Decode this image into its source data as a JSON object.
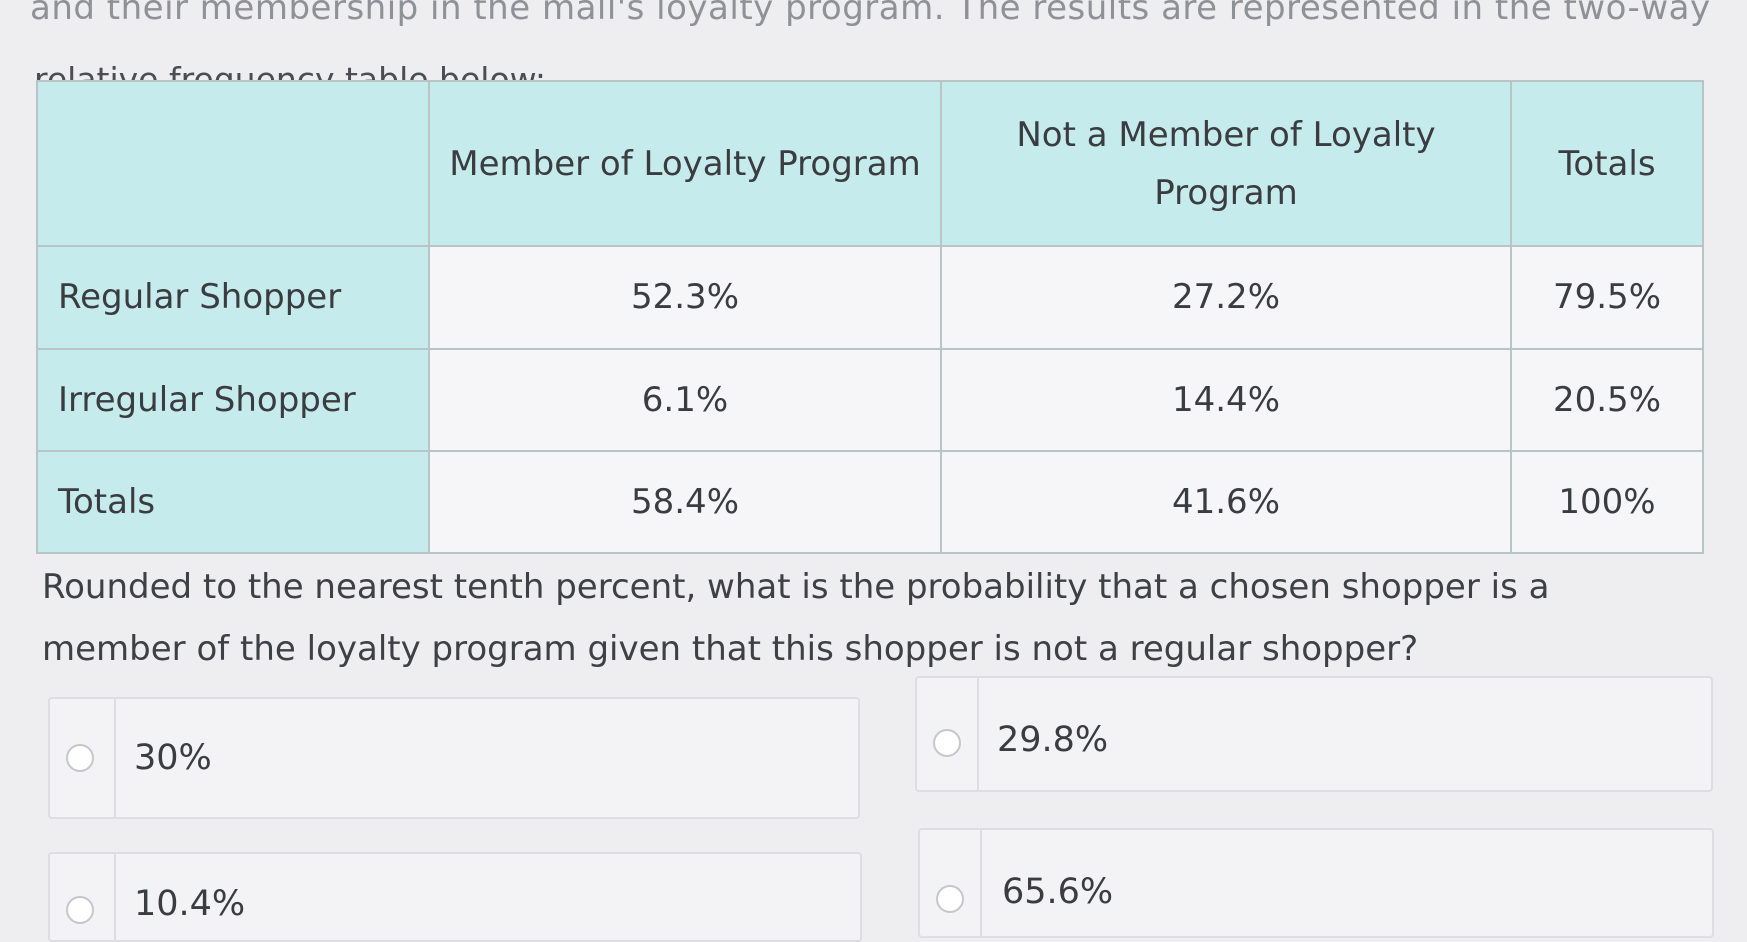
{
  "context": {
    "cut_off_line": "and their membership in the mall's loyalty program. The results are represented in the two-way",
    "intro": "relative frequency table below:"
  },
  "table": {
    "headers": [
      "",
      "Member of Loyalty Program",
      "Not a Member of Loyalty Program",
      "Totals"
    ],
    "rows": [
      {
        "label": "Regular Shopper",
        "values": [
          "52.3%",
          "27.2%",
          "79.5%"
        ]
      },
      {
        "label": "Irregular Shopper",
        "values": [
          "6.1%",
          "14.4%",
          "20.5%"
        ]
      },
      {
        "label": "Totals",
        "values": [
          "58.4%",
          "41.6%",
          "100%"
        ]
      }
    ]
  },
  "question": {
    "text": "Rounded to the nearest tenth percent, what is the probability that a chosen shopper is a member of the loyalty program given that this shopper is not a regular shopper?"
  },
  "choices": [
    {
      "label": "30%"
    },
    {
      "label": "29.8%"
    },
    {
      "label": "10.4%"
    },
    {
      "label": "65.6%"
    }
  ]
}
